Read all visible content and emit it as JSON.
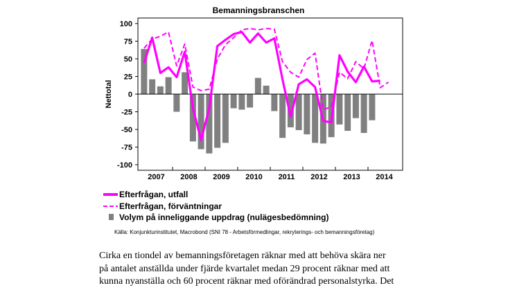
{
  "chart_data": {
    "type": "bar+line",
    "title": "Bemanningsbranschen",
    "ylabel": "Nettotal",
    "xlabel": "",
    "ylim": [
      -105,
      105
    ],
    "yticks": [
      "100",
      "75",
      "50",
      "25",
      "0",
      "-25",
      "-50",
      "-75",
      "-100"
    ],
    "ytick_values": [
      100,
      75,
      50,
      25,
      0,
      -25,
      -50,
      -75,
      -100
    ],
    "years": [
      "2007",
      "2008",
      "2009",
      "2010",
      "2011",
      "2012",
      "2013",
      "2014"
    ],
    "quarters_start": "2007 Q1",
    "series": [
      {
        "name": "Volym på inneliggande uppdrag (nulägesbedömning)",
        "kind": "bar",
        "color": "#808080",
        "values": [
          64,
          21,
          11,
          24,
          -25,
          31,
          -67,
          -78,
          -84,
          -76,
          -69,
          -20,
          -22,
          -19,
          23,
          12,
          -24,
          -62,
          -47,
          -51,
          -57,
          -69,
          -70,
          -61,
          -43,
          -52,
          -34,
          -55,
          -37
        ]
      },
      {
        "name": "Efterfrågan, utfall",
        "kind": "line",
        "style": "solid",
        "color": "#ff00ff",
        "values": [
          44,
          80,
          30,
          38,
          24,
          60,
          -20,
          -65,
          -20,
          68,
          77,
          85,
          88,
          73,
          86,
          73,
          79,
          21,
          -32,
          14,
          21,
          10,
          -38,
          -40,
          55,
          32,
          17,
          39,
          18,
          19
        ]
      },
      {
        "name": "Efterfrågan, förväntningar",
        "kind": "line",
        "style": "dashed",
        "color": "#ff00ff",
        "values": [
          65,
          78,
          82,
          88,
          40,
          71,
          10,
          5,
          7,
          50,
          70,
          80,
          91,
          93,
          91,
          93,
          92,
          46,
          31,
          24,
          49,
          58,
          -22,
          -18,
          31,
          22,
          46,
          36,
          76,
          9,
          17
        ]
      }
    ],
    "legend_position": "below",
    "source": "Källa: Konjunkturinstitutet, Macrobond (SNI 78 - Arbetsförmedlingar, rekryterings- och bemanningsföretag)"
  },
  "body_text": [
    "Cirka en tiondel av bemanningsföretagen räknar med att behöva skära ner",
    "på antalet anställda under fjärde kvartalet medan 29 procent räknar med att",
    "kunna nyanställa och 60 procent räknar med oförändrad personalstyrka. Det"
  ]
}
